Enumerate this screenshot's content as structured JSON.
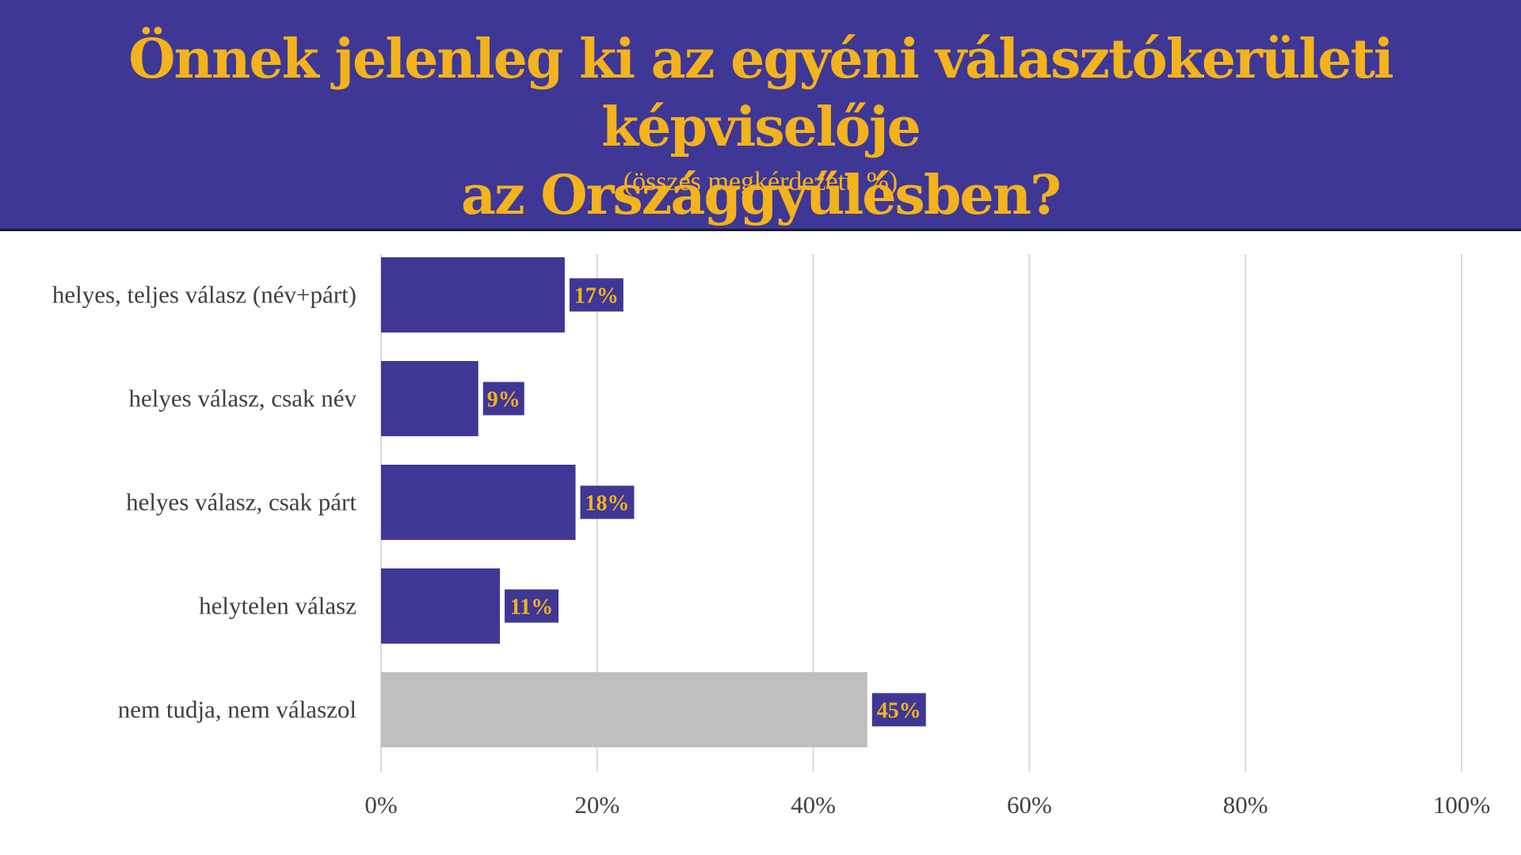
{
  "header": {
    "title_line1": "Önnek jelenleg ki az egyéni választókerületi képviselője",
    "title_line2": "az Országgyűlésben?",
    "subtitle": "(összes megkérdezett. %)"
  },
  "colors": {
    "header_bg": "#3e3796",
    "title_text": "#f3b31c",
    "bar_primary": "#3e3796",
    "bar_secondary": "#bfbfbf",
    "label_box": "#3e3796",
    "label_text": "#f3b31c",
    "grid": "#d9d9d9",
    "axis_text": "#404040"
  },
  "chart_data": {
    "type": "bar",
    "orientation": "horizontal",
    "categories": [
      "helyes, teljes válasz (név+párt)",
      "helyes válasz, csak név",
      "helyes válasz, csak párt",
      "helytelen válasz",
      "nem tudja, nem válaszol"
    ],
    "values": [
      17,
      9,
      18,
      11,
      45
    ],
    "data_labels": [
      "17%",
      "9%",
      "18%",
      "11%",
      "45%"
    ],
    "bar_colors": [
      "#3e3796",
      "#3e3796",
      "#3e3796",
      "#3e3796",
      "#bfbfbf"
    ],
    "xlim": [
      0,
      100
    ],
    "x_ticks": [
      0,
      20,
      40,
      60,
      80,
      100
    ],
    "x_tick_labels": [
      "0%",
      "20%",
      "40%",
      "60%",
      "80%",
      "100%"
    ],
    "grid": true,
    "legend": false
  }
}
